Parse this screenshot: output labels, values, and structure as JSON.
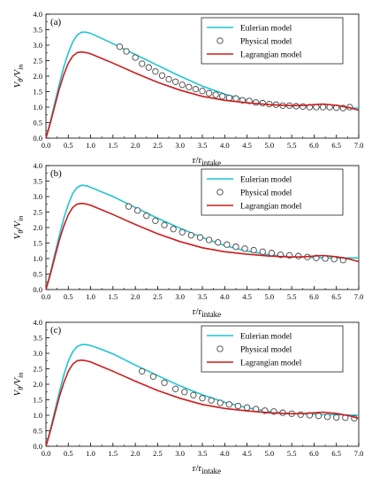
{
  "chart_data": [
    {
      "type": "line",
      "panel_label": "(a)",
      "xlabel": "r/r",
      "xlabel_sub": "intake",
      "ylabel": "V",
      "ylabel_sub1": "θ",
      "ylabel_mid": "/V",
      "ylabel_sub2": "in",
      "xlim": [
        0.0,
        7.0
      ],
      "ylim": [
        0.0,
        4.0
      ],
      "xticks": [
        "0.0",
        "0.5",
        "1.0",
        "1.5",
        "2.0",
        "2.5",
        "3.0",
        "3.5",
        "4.0",
        "4.5",
        "5.0",
        "5.5",
        "6.0",
        "6.5",
        "7.0"
      ],
      "yticks": [
        "0.0",
        "0.5",
        "1.0",
        "1.5",
        "2.0",
        "2.5",
        "3.0",
        "3.5",
        "4.0"
      ],
      "legend_position": "top-right",
      "series": [
        {
          "name": "Eulerian model",
          "style": "line",
          "color": "#1fc4d2",
          "x": [
            0.0,
            0.1,
            0.2,
            0.3,
            0.4,
            0.5,
            0.6,
            0.7,
            0.8,
            0.9,
            1.0,
            1.2,
            1.5,
            2.0,
            2.5,
            3.0,
            3.5,
            4.0,
            4.5,
            5.0,
            5.5,
            6.0,
            6.5,
            7.0
          ],
          "y": [
            0.0,
            0.55,
            1.15,
            1.75,
            2.3,
            2.75,
            3.1,
            3.33,
            3.42,
            3.42,
            3.38,
            3.25,
            3.05,
            2.7,
            2.35,
            2.0,
            1.68,
            1.42,
            1.22,
            1.08,
            1.02,
            1.0,
            0.98,
            0.97
          ]
        },
        {
          "name": "Physical model",
          "style": "markers",
          "x": [
            1.65,
            1.8,
            2.0,
            2.15,
            2.3,
            2.45,
            2.6,
            2.75,
            2.9,
            3.05,
            3.2,
            3.35,
            3.5,
            3.65,
            3.8,
            3.95,
            4.1,
            4.25,
            4.4,
            4.55,
            4.7,
            4.85,
            5.0,
            5.15,
            5.3,
            5.45,
            5.6,
            5.75,
            5.9,
            6.05,
            6.2,
            6.35,
            6.5,
            6.65,
            6.8
          ],
          "y": [
            2.95,
            2.8,
            2.6,
            2.4,
            2.28,
            2.15,
            2.02,
            1.9,
            1.82,
            1.72,
            1.65,
            1.58,
            1.52,
            1.45,
            1.4,
            1.35,
            1.3,
            1.28,
            1.22,
            1.2,
            1.15,
            1.13,
            1.1,
            1.08,
            1.05,
            1.05,
            1.03,
            1.02,
            1.0,
            1.0,
            1.0,
            1.0,
            0.98,
            0.97,
            1.0
          ]
        },
        {
          "name": "Lagrangian model",
          "style": "line",
          "color": "#cc1d1d",
          "x": [
            0.0,
            0.1,
            0.2,
            0.3,
            0.4,
            0.5,
            0.6,
            0.7,
            0.8,
            0.9,
            1.0,
            1.2,
            1.5,
            2.0,
            2.5,
            3.0,
            3.5,
            4.0,
            4.5,
            5.0,
            5.5,
            5.8,
            6.0,
            6.2,
            6.5,
            6.8,
            7.0
          ],
          "y": [
            0.0,
            0.5,
            1.05,
            1.6,
            2.05,
            2.42,
            2.65,
            2.76,
            2.78,
            2.76,
            2.72,
            2.6,
            2.42,
            2.1,
            1.8,
            1.55,
            1.35,
            1.22,
            1.14,
            1.08,
            1.05,
            1.06,
            1.08,
            1.1,
            1.06,
            0.98,
            0.9
          ]
        }
      ]
    },
    {
      "type": "line",
      "panel_label": "(b)",
      "xlabel": "r/r",
      "xlabel_sub": "intake",
      "ylabel": "V",
      "ylabel_sub1": "θ",
      "ylabel_mid": "/V",
      "ylabel_sub2": "in",
      "xlim": [
        0.0,
        7.0
      ],
      "ylim": [
        0.0,
        4.0
      ],
      "xticks": [
        "0.0",
        "0.5",
        "1.0",
        "1.5",
        "2.0",
        "2.5",
        "3.0",
        "3.5",
        "4.0",
        "4.5",
        "5.0",
        "5.5",
        "6.0",
        "6.5",
        "7.0"
      ],
      "yticks": [
        "0.0",
        "0.5",
        "1.0",
        "1.5",
        "2.0",
        "2.5",
        "3.0",
        "3.5",
        "4.0"
      ],
      "legend_position": "top-right",
      "series": [
        {
          "name": "Eulerian model",
          "style": "line",
          "color": "#1fc4d2",
          "x": [
            0.0,
            0.1,
            0.2,
            0.3,
            0.4,
            0.5,
            0.6,
            0.7,
            0.8,
            0.9,
            1.0,
            1.2,
            1.5,
            2.0,
            2.5,
            3.0,
            3.5,
            4.0,
            4.5,
            5.0,
            5.5,
            6.0,
            6.5,
            7.0
          ],
          "y": [
            0.0,
            0.55,
            1.15,
            1.75,
            2.3,
            2.75,
            3.1,
            3.3,
            3.37,
            3.35,
            3.3,
            3.18,
            3.0,
            2.65,
            2.3,
            1.98,
            1.68,
            1.42,
            1.24,
            1.12,
            1.06,
            1.03,
            1.02,
            1.02
          ]
        },
        {
          "name": "Physical model",
          "style": "markers",
          "x": [
            1.85,
            2.05,
            2.25,
            2.45,
            2.65,
            2.85,
            3.05,
            3.25,
            3.45,
            3.65,
            3.85,
            4.05,
            4.25,
            4.45,
            4.65,
            4.85,
            5.05,
            5.25,
            5.45,
            5.65,
            5.85,
            6.05,
            6.25,
            6.45,
            6.65
          ],
          "y": [
            2.68,
            2.55,
            2.38,
            2.22,
            2.08,
            1.95,
            1.85,
            1.75,
            1.68,
            1.6,
            1.52,
            1.45,
            1.38,
            1.32,
            1.27,
            1.22,
            1.18,
            1.12,
            1.1,
            1.08,
            1.05,
            1.02,
            1.0,
            0.98,
            0.95
          ]
        },
        {
          "name": "Lagrangian model",
          "style": "line",
          "color": "#cc1d1d",
          "x": [
            0.0,
            0.1,
            0.2,
            0.3,
            0.4,
            0.5,
            0.6,
            0.7,
            0.8,
            0.9,
            1.0,
            1.2,
            1.5,
            2.0,
            2.5,
            3.0,
            3.5,
            4.0,
            4.5,
            5.0,
            5.5,
            5.8,
            6.0,
            6.2,
            6.5,
            6.8,
            7.0
          ],
          "y": [
            0.0,
            0.5,
            1.05,
            1.6,
            2.05,
            2.42,
            2.65,
            2.76,
            2.78,
            2.76,
            2.72,
            2.6,
            2.42,
            2.1,
            1.8,
            1.55,
            1.35,
            1.22,
            1.14,
            1.08,
            1.05,
            1.06,
            1.08,
            1.1,
            1.06,
            0.98,
            0.9
          ]
        }
      ]
    },
    {
      "type": "line",
      "panel_label": "(c)",
      "xlabel": "r/r",
      "xlabel_sub": "intake",
      "ylabel": "V",
      "ylabel_sub1": "θ",
      "ylabel_mid": "/V",
      "ylabel_sub2": "in",
      "xlim": [
        0.0,
        7.0
      ],
      "ylim": [
        0.0,
        4.0
      ],
      "xticks": [
        "0.0",
        "0.5",
        "1.0",
        "1.5",
        "2.0",
        "2.5",
        "3.0",
        "3.5",
        "4.0",
        "4.5",
        "5.0",
        "5.5",
        "6.0",
        "6.5",
        "7.0"
      ],
      "yticks": [
        "0.0",
        "0.5",
        "1.0",
        "1.5",
        "2.0",
        "2.5",
        "3.0",
        "3.5",
        "4.0"
      ],
      "legend_position": "top-right",
      "series": [
        {
          "name": "Eulerian model",
          "style": "line",
          "color": "#1fc4d2",
          "x": [
            0.0,
            0.1,
            0.2,
            0.3,
            0.4,
            0.5,
            0.6,
            0.7,
            0.8,
            0.9,
            1.0,
            1.2,
            1.5,
            2.0,
            2.5,
            3.0,
            3.5,
            4.0,
            4.5,
            5.0,
            5.5,
            6.0,
            6.5,
            7.0
          ],
          "y": [
            0.0,
            0.55,
            1.15,
            1.75,
            2.3,
            2.75,
            3.05,
            3.22,
            3.28,
            3.28,
            3.25,
            3.15,
            2.98,
            2.62,
            2.28,
            1.95,
            1.66,
            1.42,
            1.24,
            1.12,
            1.06,
            1.03,
            1.02,
            1.0
          ]
        },
        {
          "name": "Physical model",
          "style": "markers",
          "x": [
            2.15,
            2.4,
            2.65,
            2.9,
            3.1,
            3.3,
            3.5,
            3.7,
            3.9,
            4.1,
            4.3,
            4.5,
            4.7,
            4.9,
            5.1,
            5.3,
            5.5,
            5.7,
            5.9,
            6.1,
            6.3,
            6.5,
            6.7,
            6.9
          ],
          "y": [
            2.42,
            2.25,
            2.05,
            1.85,
            1.75,
            1.65,
            1.55,
            1.48,
            1.4,
            1.35,
            1.3,
            1.25,
            1.2,
            1.15,
            1.12,
            1.08,
            1.05,
            1.02,
            1.0,
            0.98,
            0.95,
            0.93,
            0.92,
            0.9
          ]
        },
        {
          "name": "Lagrangian model",
          "style": "line",
          "color": "#cc1d1d",
          "x": [
            0.0,
            0.1,
            0.2,
            0.3,
            0.4,
            0.5,
            0.6,
            0.7,
            0.8,
            0.9,
            1.0,
            1.2,
            1.5,
            2.0,
            2.5,
            3.0,
            3.5,
            4.0,
            4.5,
            5.0,
            5.5,
            5.8,
            6.0,
            6.2,
            6.5,
            6.8,
            7.0
          ],
          "y": [
            0.0,
            0.5,
            1.05,
            1.6,
            2.05,
            2.42,
            2.65,
            2.76,
            2.78,
            2.76,
            2.72,
            2.6,
            2.42,
            2.1,
            1.8,
            1.55,
            1.35,
            1.22,
            1.14,
            1.08,
            1.05,
            1.06,
            1.08,
            1.1,
            1.06,
            0.98,
            0.9
          ]
        }
      ]
    }
  ]
}
